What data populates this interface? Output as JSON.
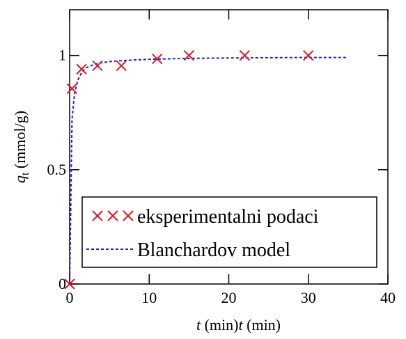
{
  "chart_data": {
    "type": "scatter",
    "title": "",
    "xlabel_var": "t",
    "xlabel_unit": " (min)",
    "ylabel_var": "q",
    "ylabel_sub": "t",
    "ylabel_unit": " (mmol/g)",
    "xlim": [
      0,
      40
    ],
    "ylim": [
      0,
      1.2
    ],
    "xticks": [
      0,
      10,
      20,
      30,
      40
    ],
    "xtick_labels": [
      "0",
      "10",
      "20",
      "30",
      "40"
    ],
    "yticks": [
      0,
      0.5,
      1
    ],
    "ytick_labels": [
      "0",
      "0.5",
      "1"
    ],
    "grid": false,
    "legend_position": "bottom-left",
    "series": [
      {
        "name": "eksperimentalni podaci",
        "kind": "markers",
        "marker": "x",
        "color": "#e8141c",
        "x": [
          0,
          0.3,
          1.5,
          3.5,
          6.5,
          11,
          15,
          22,
          30
        ],
        "y": [
          0,
          0.855,
          0.94,
          0.955,
          0.955,
          0.985,
          1.0,
          1.0,
          1.0
        ]
      },
      {
        "name": "Blanchardov model",
        "kind": "line",
        "style": "dotted",
        "color": "#1a1ae6",
        "x": [
          0,
          0.3,
          0.6,
          1,
          1.5,
          2,
          3,
          4,
          5,
          6,
          7,
          8,
          10,
          12,
          15,
          20,
          25,
          30,
          35
        ],
        "y": [
          0,
          0.72,
          0.83,
          0.89,
          0.925,
          0.945,
          0.96,
          0.968,
          0.973,
          0.976,
          0.978,
          0.98,
          0.983,
          0.985,
          0.987,
          0.989,
          0.99,
          0.991,
          0.991
        ]
      }
    ]
  }
}
